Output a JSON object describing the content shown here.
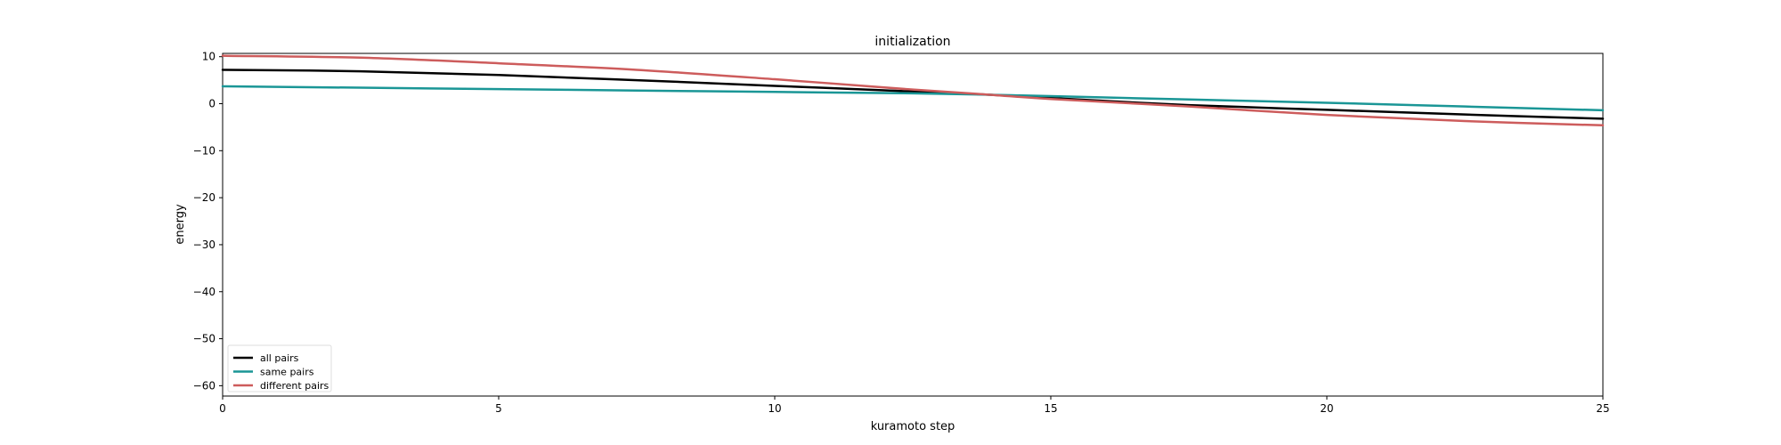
{
  "chart_data": {
    "type": "line",
    "title": "initialization",
    "xlabel": "kuramoto step",
    "ylabel": "energy",
    "xlim": [
      0,
      25
    ],
    "ylim": [
      -62.2,
      10.7
    ],
    "xticks": [
      0,
      5,
      10,
      15,
      20,
      25
    ],
    "yticks": [
      10,
      0,
      -10,
      -20,
      -30,
      -40,
      -50,
      -60
    ],
    "ytick_labels": [
      "10",
      "0",
      "−10",
      "−20",
      "−30",
      "−40",
      "−50",
      "−60"
    ],
    "grid": false,
    "legend_position": "lower-left",
    "x": [
      0,
      2.5,
      5,
      7.5,
      10,
      12.5,
      13.9,
      15,
      17.5,
      20,
      22.5,
      25
    ],
    "series": [
      {
        "name": "all pairs",
        "color": "#000000",
        "values": [
          7.2,
          6.9,
          6.1,
          5.0,
          3.8,
          2.6,
          1.9,
          1.2,
          -0.3,
          -1.3,
          -2.3,
          -3.2
        ]
      },
      {
        "name": "same pairs",
        "color": "#1a9696",
        "values": [
          3.7,
          3.4,
          3.1,
          2.8,
          2.5,
          2.2,
          1.9,
          1.6,
          0.9,
          0.2,
          -0.6,
          -1.4
        ]
      },
      {
        "name": "different pairs",
        "color": "#cd5c5c",
        "values": [
          10.2,
          9.8,
          8.6,
          7.2,
          5.2,
          3.0,
          1.9,
          1.0,
          -0.6,
          -2.4,
          -3.7,
          -4.6
        ]
      }
    ]
  }
}
